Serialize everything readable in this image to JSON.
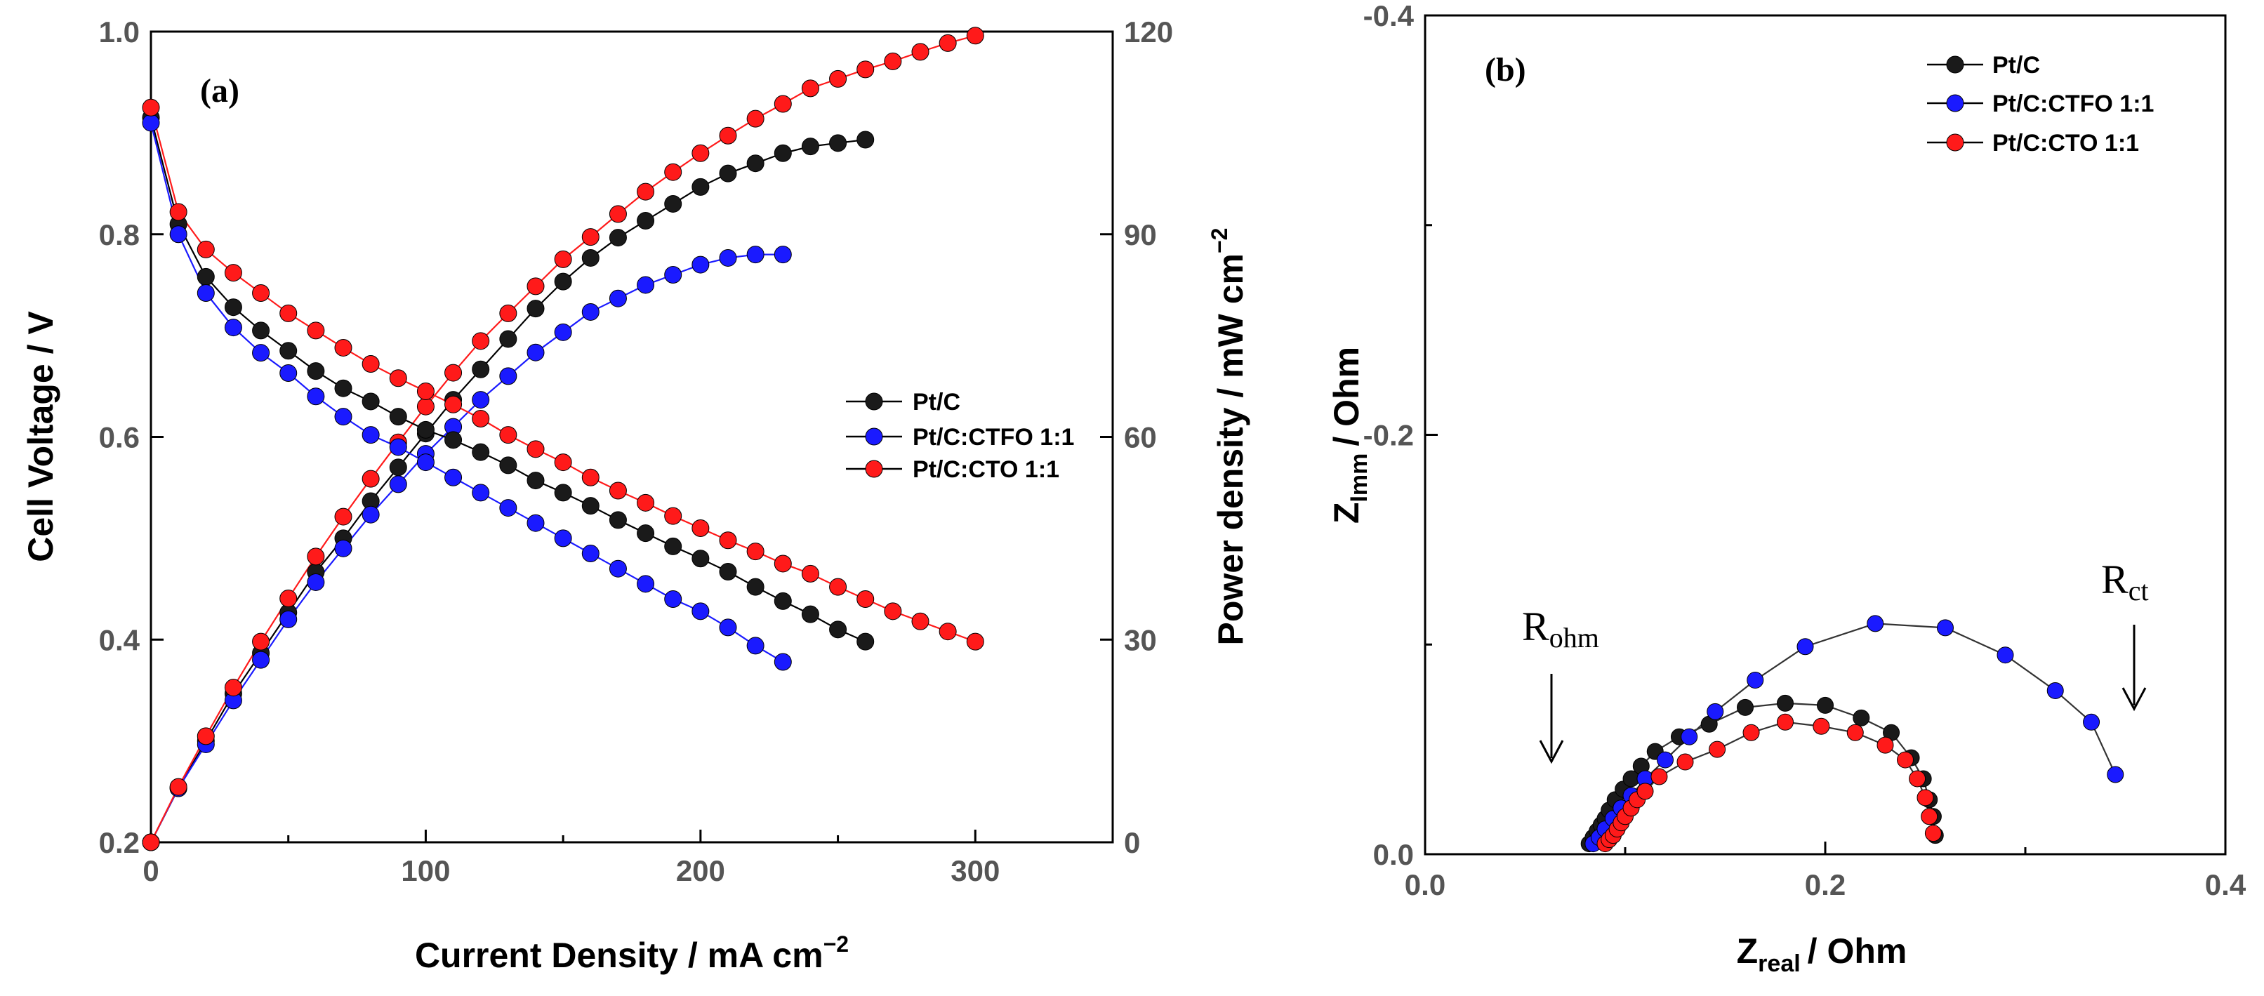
{
  "colors": {
    "pt_c": "#000000",
    "ctfo": "#1a1aff",
    "cto": "#ff1a1a"
  },
  "chart_data": [
    {
      "panel_label": "(a)",
      "type": "line",
      "xlabel": "Current Density / mA cm",
      "xlabel_sup": "−2",
      "ylabel_left": "Cell Voltage / V",
      "ylabel_right": "Power density / mW cm",
      "ylabel_right_sup": "−2",
      "xlim": [
        0,
        350
      ],
      "ylim_left": [
        0.2,
        1.0
      ],
      "ylim_right": [
        0,
        120
      ],
      "xticks": [
        "0",
        "100",
        "200",
        "300"
      ],
      "xtick_values": [
        0,
        100,
        200,
        300
      ],
      "yticks_left": [
        "0.2",
        "0.4",
        "0.6",
        "0.8",
        "1.0"
      ],
      "ytick_values_left": [
        0.2,
        0.4,
        0.6,
        0.8,
        1.0
      ],
      "yticks_right": [
        "0",
        "30",
        "60",
        "90",
        "120"
      ],
      "ytick_values_right": [
        0,
        30,
        60,
        90,
        120
      ],
      "legend": [
        "Pt/C",
        "Pt/C:CTFO 1:1",
        "Pt/C:CTO 1:1"
      ],
      "legend_position": "center-right",
      "voltage_series": [
        {
          "name": "Pt/C",
          "color_key": "pt_c",
          "x": [
            0,
            10,
            20,
            30,
            40,
            50,
            60,
            70,
            80,
            90,
            100,
            110,
            120,
            130,
            140,
            150,
            160,
            170,
            180,
            190,
            200,
            210,
            220,
            230,
            240,
            250,
            260
          ],
          "y": [
            0.915,
            0.81,
            0.758,
            0.728,
            0.705,
            0.685,
            0.665,
            0.648,
            0.635,
            0.62,
            0.607,
            0.597,
            0.585,
            0.572,
            0.557,
            0.545,
            0.532,
            0.518,
            0.505,
            0.492,
            0.48,
            0.467,
            0.452,
            0.438,
            0.425,
            0.41,
            0.398
          ]
        },
        {
          "name": "Pt/C:CTFO 1:1",
          "color_key": "ctfo",
          "x": [
            0,
            10,
            20,
            30,
            40,
            50,
            60,
            70,
            80,
            90,
            100,
            110,
            120,
            130,
            140,
            150,
            160,
            170,
            180,
            190,
            200,
            210,
            220,
            230
          ],
          "y": [
            0.91,
            0.8,
            0.742,
            0.708,
            0.683,
            0.663,
            0.64,
            0.62,
            0.602,
            0.59,
            0.575,
            0.56,
            0.545,
            0.53,
            0.515,
            0.5,
            0.485,
            0.47,
            0.455,
            0.44,
            0.428,
            0.412,
            0.394,
            0.378
          ]
        },
        {
          "name": "Pt/C:CTO 1:1",
          "color_key": "cto",
          "x": [
            0,
            10,
            20,
            30,
            40,
            50,
            60,
            70,
            80,
            90,
            100,
            110,
            120,
            130,
            140,
            150,
            160,
            170,
            180,
            190,
            200,
            210,
            220,
            230,
            240,
            250,
            260,
            270,
            280,
            290,
            300
          ],
          "y": [
            0.925,
            0.822,
            0.785,
            0.762,
            0.742,
            0.722,
            0.705,
            0.688,
            0.672,
            0.658,
            0.645,
            0.632,
            0.618,
            0.602,
            0.588,
            0.575,
            0.56,
            0.547,
            0.535,
            0.522,
            0.51,
            0.498,
            0.487,
            0.475,
            0.465,
            0.452,
            0.44,
            0.428,
            0.418,
            0.408,
            0.398
          ]
        }
      ],
      "power_series": [
        {
          "name": "Pt/C",
          "color_key": "pt_c",
          "x": [
            0,
            10,
            20,
            30,
            40,
            50,
            60,
            70,
            80,
            90,
            100,
            110,
            120,
            130,
            140,
            150,
            160,
            170,
            180,
            190,
            200,
            210,
            220,
            230,
            240,
            250,
            260
          ],
          "y": [
            0,
            8,
            15,
            22,
            28,
            34,
            40,
            45,
            50.5,
            55.5,
            60.5,
            65.5,
            70,
            74.5,
            79,
            83,
            86.5,
            89.5,
            92,
            94.5,
            97,
            99,
            100.5,
            102,
            103,
            103.5,
            104
          ]
        },
        {
          "name": "Pt/C:CTFO 1:1",
          "color_key": "ctfo",
          "x": [
            0,
            10,
            20,
            30,
            40,
            50,
            60,
            70,
            80,
            90,
            100,
            110,
            120,
            130,
            140,
            150,
            160,
            170,
            180,
            190,
            200,
            210,
            220,
            230
          ],
          "y": [
            0,
            8,
            14.5,
            21,
            27,
            33,
            38.5,
            43.5,
            48.5,
            53,
            57.5,
            61.5,
            65.5,
            69,
            72.5,
            75.5,
            78.5,
            80.5,
            82.5,
            84,
            85.5,
            86.5,
            87,
            87
          ]
        },
        {
          "name": "Pt/C:CTO 1:1",
          "color_key": "cto",
          "x": [
            0,
            10,
            20,
            30,
            40,
            50,
            60,
            70,
            80,
            90,
            100,
            110,
            120,
            130,
            140,
            150,
            160,
            170,
            180,
            190,
            200,
            210,
            220,
            230,
            240,
            250,
            260,
            270,
            280,
            290,
            300
          ],
          "y": [
            0,
            8.2,
            15.7,
            22.9,
            29.7,
            36.1,
            42.3,
            48.2,
            53.8,
            59.2,
            64.5,
            69.5,
            74.2,
            78.3,
            82.3,
            86.3,
            89.6,
            93,
            96.3,
            99.2,
            102,
            104.6,
            107.1,
            109.3,
            111.6,
            113,
            114.4,
            115.6,
            117,
            118.3,
            119.4
          ]
        }
      ]
    },
    {
      "panel_label": "(b)",
      "type": "scatter",
      "xlabel_main": "Z",
      "xlabel_sub": "real",
      "xlabel_rest": "/ Ohm",
      "ylabel_main": "Z",
      "ylabel_sub": "Imm",
      "ylabel_rest": "/ Ohm",
      "xlim": [
        0.0,
        0.4
      ],
      "ylim": [
        0.0,
        -0.4
      ],
      "xticks": [
        "0.0",
        "0.2",
        "0.4"
      ],
      "xtick_values": [
        0.0,
        0.2,
        0.4
      ],
      "yticks": [
        "0.0",
        "-0.2",
        "-0.4"
      ],
      "ytick_values": [
        0.0,
        -0.2,
        -0.4
      ],
      "legend": [
        "Pt/C",
        "Pt/C:CTFO 1:1",
        "Pt/C:CTO 1:1"
      ],
      "legend_position": "top-center",
      "annotations": [
        {
          "main": "R",
          "sub": "ohm"
        },
        {
          "main": "R",
          "sub": "ct"
        }
      ],
      "series": [
        {
          "name": "Pt/C",
          "color_key": "pt_c",
          "x": [
            0.082,
            0.084,
            0.086,
            0.088,
            0.09,
            0.092,
            0.095,
            0.099,
            0.103,
            0.108,
            0.115,
            0.127,
            0.142,
            0.16,
            0.18,
            0.2,
            0.218,
            0.233,
            0.243,
            0.249,
            0.252,
            0.254,
            0.255
          ],
          "y": [
            -0.005,
            -0.008,
            -0.011,
            -0.014,
            -0.017,
            -0.021,
            -0.026,
            -0.031,
            -0.036,
            -0.042,
            -0.049,
            -0.056,
            -0.062,
            -0.07,
            -0.072,
            -0.071,
            -0.065,
            -0.058,
            -0.046,
            -0.036,
            -0.026,
            -0.018,
            -0.009
          ]
        },
        {
          "name": "Pt/C:CTFO 1:1",
          "color_key": "ctfo",
          "x": [
            0.084,
            0.087,
            0.09,
            0.094,
            0.098,
            0.103,
            0.11,
            0.12,
            0.132,
            0.145,
            0.165,
            0.19,
            0.225,
            0.26,
            0.29,
            0.315,
            0.333,
            0.345
          ],
          "y": [
            -0.005,
            -0.008,
            -0.012,
            -0.017,
            -0.022,
            -0.028,
            -0.036,
            -0.045,
            -0.056,
            -0.068,
            -0.083,
            -0.099,
            -0.11,
            -0.108,
            -0.095,
            -0.078,
            -0.063,
            -0.038
          ]
        },
        {
          "name": "Pt/C:CTO 1:1",
          "color_key": "cto",
          "x": [
            0.09,
            0.092,
            0.094,
            0.096,
            0.098,
            0.1,
            0.103,
            0.106,
            0.11,
            0.117,
            0.13,
            0.146,
            0.163,
            0.18,
            0.198,
            0.215,
            0.23,
            0.24,
            0.246,
            0.25,
            0.252,
            0.254
          ],
          "y": [
            -0.005,
            -0.007,
            -0.009,
            -0.012,
            -0.015,
            -0.018,
            -0.022,
            -0.026,
            -0.03,
            -0.037,
            -0.044,
            -0.05,
            -0.058,
            -0.063,
            -0.061,
            -0.058,
            -0.052,
            -0.045,
            -0.036,
            -0.027,
            -0.018,
            -0.01
          ]
        }
      ]
    }
  ]
}
